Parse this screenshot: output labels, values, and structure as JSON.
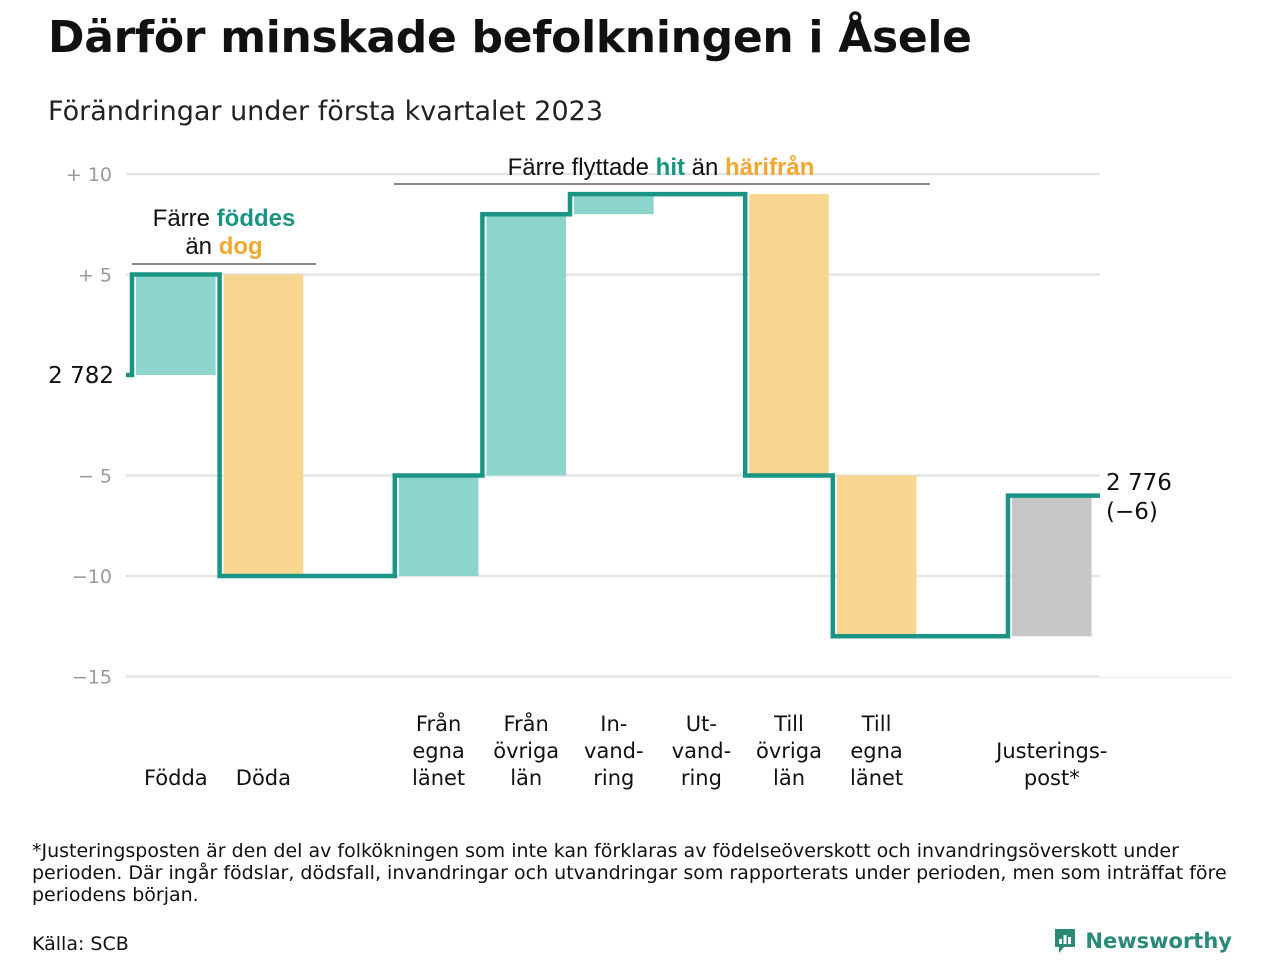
{
  "header": {
    "title": "Därför minskade befolkningen i Åsele",
    "subtitle": "Förändringar under första kvartalet 2023"
  },
  "chart_data": {
    "type": "bar",
    "subtype": "waterfall",
    "start_value": 2782,
    "start_label": "2 782",
    "end_label_line1": "2 776",
    "end_label_line2": "(−6)",
    "ylim": [
      -15,
      10
    ],
    "yticks": [
      10,
      5,
      0,
      -5,
      -10,
      -15
    ],
    "ytick_labels": [
      "+ 10",
      "+ 5",
      "",
      "− 5",
      "−10",
      "−15"
    ],
    "grid": true,
    "steps": [
      {
        "category": [
          "Födda"
        ],
        "value": 5,
        "color": "#8dd5cc"
      },
      {
        "category": [
          "Döda"
        ],
        "value": -15,
        "color": "#f9d690"
      },
      {
        "category": [
          ""
        ],
        "value": 0,
        "color": "#ffffff"
      },
      {
        "category": [
          "Från",
          "egna",
          "länet"
        ],
        "value": 5,
        "color": "#8dd5cc"
      },
      {
        "category": [
          "Från",
          "övriga",
          "län"
        ],
        "value": 13,
        "color": "#8dd5cc"
      },
      {
        "category": [
          "In-",
          "vand-",
          "ring"
        ],
        "value": 1,
        "color": "#8dd5cc"
      },
      {
        "category": [
          "Ut-",
          "vand-",
          "ring"
        ],
        "value": 0,
        "color": "#f9d690"
      },
      {
        "category": [
          "Till",
          "övriga",
          "län"
        ],
        "value": -14,
        "color": "#f9d690"
      },
      {
        "category": [
          "Till",
          "egna",
          "länet"
        ],
        "value": -8,
        "color": "#f9d690"
      },
      {
        "category": [
          ""
        ],
        "value": 0,
        "color": "#ffffff"
      },
      {
        "category": [
          "Justerings-",
          "post*"
        ],
        "value": 7,
        "color": "#c6c6c6"
      }
    ],
    "annotations": {
      "births": {
        "line1_prefix": "Färre ",
        "line1_highlight": "föddes",
        "line2_prefix": "än ",
        "line2_highlight": "dog"
      },
      "migration": {
        "prefix": "Färre flyttade ",
        "highlight1": "hit",
        "middle": " än ",
        "highlight2": "härifrån"
      }
    },
    "colors": {
      "increase": "#8dd5cc",
      "decrease": "#f9d690",
      "adjustment": "#c6c6c6",
      "line": "#1a9484",
      "highlight_teal": "#1a9484",
      "highlight_orange": "#f2a72e"
    }
  },
  "footer": {
    "footnote": "*Justeringsposten är den del av folkökningen som inte kan förklaras av födelseöverskott och invandringsöverskott under perioden. Där ingår födslar, dödsfall, invandringar och utvandringar som rapporterats under perioden, men som inträffat före periodens början.",
    "source": "Källa: SCB",
    "brand": "Newsworthy",
    "brand_icon": "bar-chart-logo-icon"
  }
}
